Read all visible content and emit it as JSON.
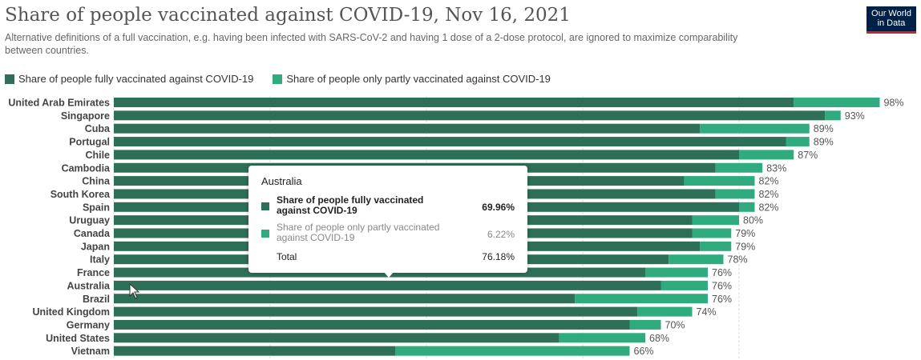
{
  "title": "Share of people vaccinated against COVID-19, Nov 16, 2021",
  "subtitle": "Alternative definitions of a full vaccination, e.g. having been infected with SARS-CoV-2 and having 1 dose of a 2-dose protocol, are ignored to maximize comparability between countries.",
  "logo": {
    "line1": "Our World",
    "line2": "in Data"
  },
  "colors": {
    "fully": "#2e6f57",
    "partly": "#2fab7e",
    "grid": "#dddddd",
    "label": "#444444"
  },
  "legend": {
    "fully": "Share of people fully vaccinated against COVID-19",
    "partly": "Share of people only partly vaccinated against COVID-19"
  },
  "tooltip": {
    "country": "Australia",
    "fully_label": "Share of people fully vaccinated against COVID-19",
    "fully_value": "69.96%",
    "partly_label": "Share of people only partly vaccinated against COVID-19",
    "partly_value": "6.22%",
    "total_label": "Total",
    "total_value": "76.18%"
  },
  "chart_data": {
    "type": "bar",
    "orientation": "horizontal",
    "stacked": true,
    "categories": [
      "United Arab Emirates",
      "Singapore",
      "Cuba",
      "Portugal",
      "Chile",
      "Cambodia",
      "China",
      "South Korea",
      "Spain",
      "Uruguay",
      "Canada",
      "Japan",
      "Italy",
      "France",
      "Australia",
      "Brazil",
      "United Kingdom",
      "Germany",
      "United States",
      "Vietnam"
    ],
    "series": [
      {
        "name": "Share of people fully vaccinated against COVID-19",
        "values": [
          87,
          91,
          75,
          86,
          80,
          77,
          73,
          77,
          80,
          74,
          74,
          75,
          71,
          68,
          70,
          59,
          67,
          66,
          57,
          36
        ]
      },
      {
        "name": "Share of people only partly vaccinated against COVID-19",
        "values": [
          11,
          2,
          14,
          3,
          7,
          6,
          9,
          5,
          2,
          6,
          5,
          4,
          7,
          8,
          6,
          17,
          7,
          4,
          11,
          30
        ]
      }
    ],
    "total_labels": [
      "98%",
      "93%",
      "89%",
      "89%",
      "87%",
      "83%",
      "82%",
      "82%",
      "82%",
      "80%",
      "79%",
      "79%",
      "78%",
      "76%",
      "76%",
      "76%",
      "74%",
      "70%",
      "68%",
      "66%"
    ],
    "xlim": [
      0,
      100
    ],
    "grid": true,
    "legend_position": "top-left"
  }
}
